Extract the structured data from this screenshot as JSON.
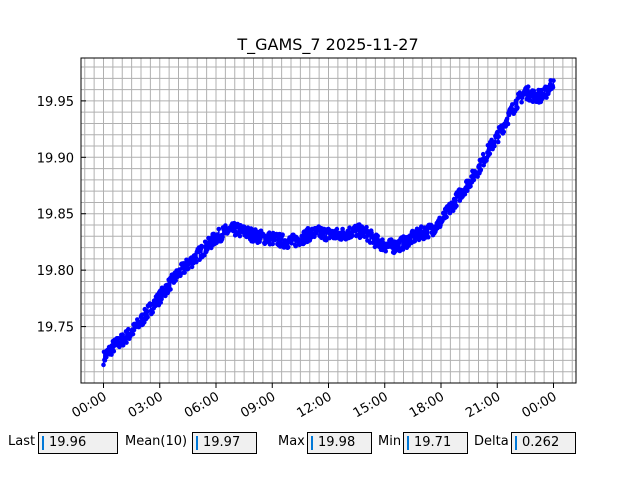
{
  "chart_data": {
    "type": "scatter",
    "title": "T_GAMS_7 2025-11-27",
    "xlabel": "",
    "ylabel": "",
    "x_ticks": [
      "00:00",
      "03:00",
      "06:00",
      "09:00",
      "12:00",
      "15:00",
      "18:00",
      "21:00",
      "00:00"
    ],
    "y_ticks": [
      "19.75",
      "19.80",
      "19.85",
      "19.90",
      "19.95"
    ],
    "y_tick_values": [
      19.75,
      19.8,
      19.85,
      19.9,
      19.95
    ],
    "xlim_hours": [
      -1.2,
      25.2
    ],
    "ylim": [
      19.7,
      19.988
    ],
    "grid": true,
    "series": [
      {
        "color": "#0000ff",
        "marker": "circle",
        "x_hours": [
          0,
          0.5,
          1,
          1.5,
          2,
          2.5,
          3,
          3.5,
          4,
          4.5,
          5,
          5.5,
          6,
          6.5,
          7,
          7.5,
          8,
          8.5,
          9,
          9.5,
          10,
          10.5,
          11,
          11.5,
          12,
          12.5,
          13,
          13.5,
          14,
          14.5,
          15,
          15.5,
          16,
          16.5,
          17,
          17.5,
          18,
          18.5,
          19,
          19.5,
          20,
          20.5,
          21,
          21.5,
          22,
          22.5,
          23,
          23.5,
          24
        ],
        "y": [
          19.722,
          19.732,
          19.738,
          19.745,
          19.755,
          19.766,
          19.776,
          19.787,
          19.797,
          19.805,
          19.813,
          19.821,
          19.829,
          19.834,
          19.836,
          19.834,
          19.831,
          19.829,
          19.828,
          19.826,
          19.825,
          19.828,
          19.832,
          19.833,
          19.832,
          19.831,
          19.833,
          19.835,
          19.833,
          19.826,
          19.822,
          19.821,
          19.824,
          19.829,
          19.833,
          19.836,
          19.843,
          19.855,
          19.867,
          19.878,
          19.89,
          19.905,
          19.918,
          19.933,
          19.948,
          19.958,
          19.954,
          19.955,
          19.968
        ]
      }
    ]
  },
  "stats": {
    "last_label": "Last",
    "last_value": "19.96",
    "mean_label": "Mean(10)",
    "mean_value": "19.97",
    "max_label": "Max",
    "max_value": "19.98",
    "min_label": "Min",
    "min_value": "19.71",
    "delta_label": "Delta",
    "delta_value": "0.262"
  }
}
